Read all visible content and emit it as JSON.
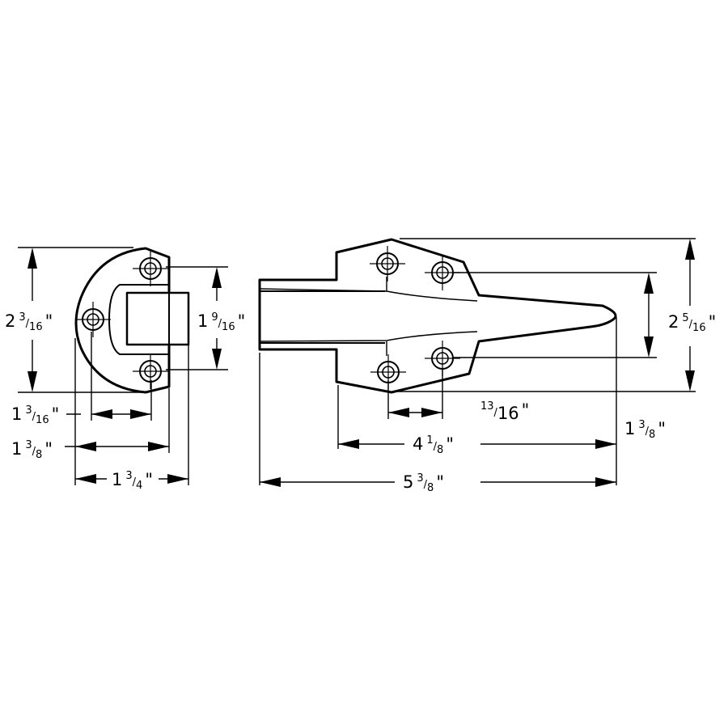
{
  "dimensions": {
    "strike_height": {
      "whole": "2",
      "num": "3",
      "den": "16"
    },
    "strike_hole_spacing": {
      "whole": "1",
      "num": "9",
      "den": "16"
    },
    "strike_hole_offset": {
      "whole": "1",
      "num": "3",
      "den": "16"
    },
    "strike_width_a": {
      "whole": "1",
      "num": "3",
      "den": "8"
    },
    "strike_width_b": {
      "whole": "1",
      "num": "3",
      "den": "4"
    },
    "handle_height": {
      "whole": "2",
      "num": "5",
      "den": "16"
    },
    "handle_hole_offset": {
      "whole": "",
      "num": "13",
      "den": "16"
    },
    "handle_hole_spacing": {
      "whole": "1",
      "num": "3",
      "den": "8"
    },
    "handle_length_a": {
      "whole": "4",
      "num": "1",
      "den": "8"
    },
    "handle_length_b": {
      "whole": "5",
      "num": "3",
      "den": "8"
    }
  },
  "inch_mark": "\""
}
